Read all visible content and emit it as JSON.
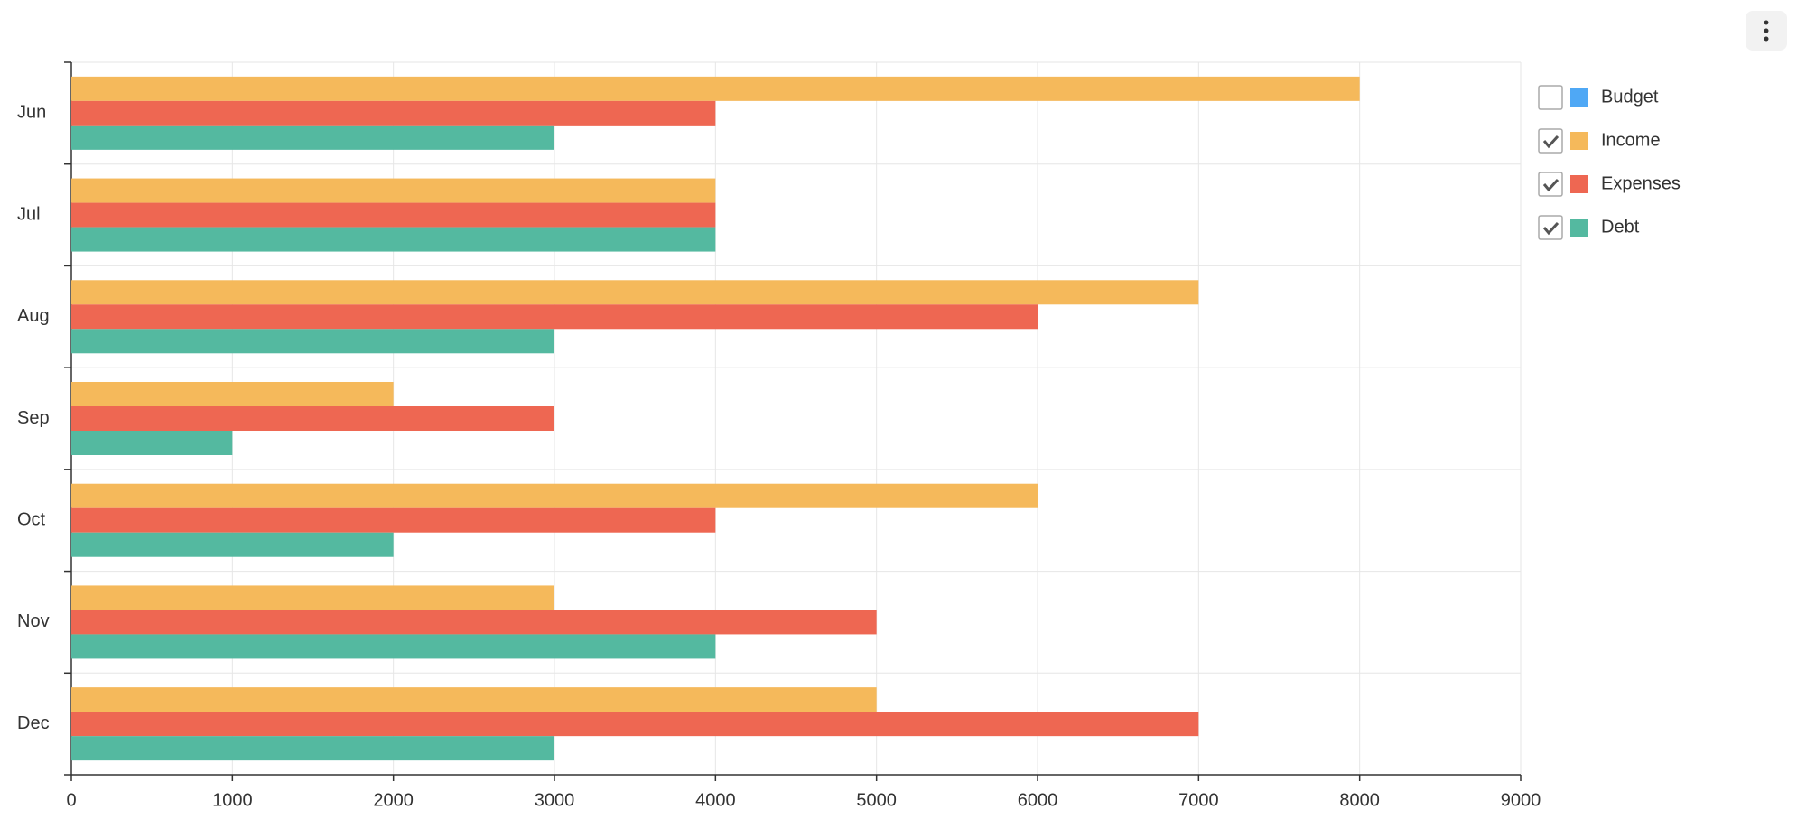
{
  "chart_data": {
    "type": "hbar",
    "categories": [
      "Jun",
      "Jul",
      "Aug",
      "Sep",
      "Oct",
      "Nov",
      "Dec"
    ],
    "series": [
      {
        "name": "Budget",
        "color": "#4fa8f5",
        "checked": false,
        "values": [
          null,
          null,
          null,
          null,
          null,
          null,
          null
        ]
      },
      {
        "name": "Income",
        "color": "#f5b95b",
        "checked": true,
        "values": [
          8000,
          4000,
          7000,
          2000,
          6000,
          3000,
          5000
        ]
      },
      {
        "name": "Expenses",
        "color": "#ee6752",
        "checked": true,
        "values": [
          4000,
          4000,
          6000,
          3000,
          4000,
          5000,
          7000
        ]
      },
      {
        "name": "Debt",
        "color": "#54b9a0",
        "checked": true,
        "values": [
          3000,
          4000,
          3000,
          1000,
          2000,
          4000,
          3000
        ]
      }
    ],
    "xlim": [
      0,
      9000
    ],
    "xticks": [
      0,
      1000,
      2000,
      3000,
      4000,
      5000,
      6000,
      7000,
      8000,
      9000
    ],
    "grid": true,
    "legend": "right"
  }
}
